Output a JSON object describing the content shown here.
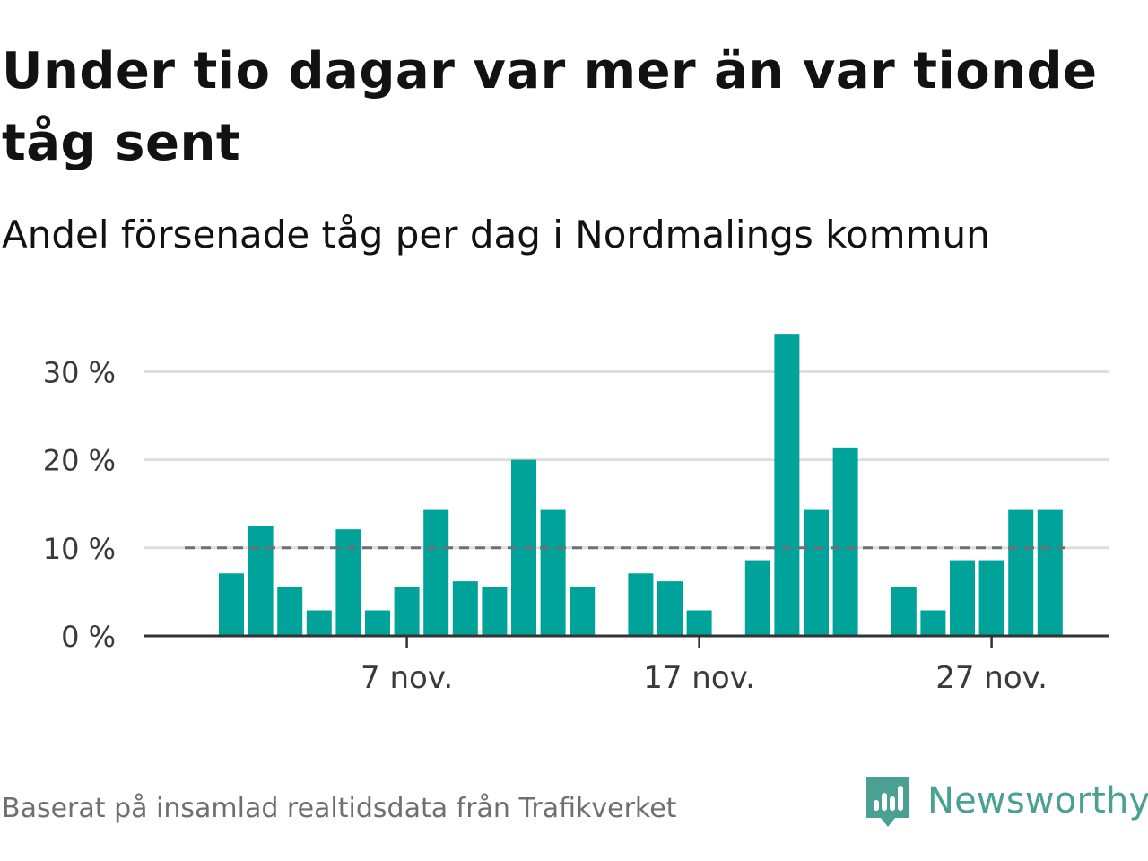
{
  "title": "Under tio dagar var mer än var tionde tåg sent",
  "subtitle": "Andel försenade tåg per dag i Nordmalings kommun",
  "footer": {
    "source": "Baserat på insamlad realtidsdata från Trafikverket",
    "brand": "Newsworthy"
  },
  "colors": {
    "bar": "#00a39a",
    "reference_line": "#6e6e76",
    "grid": "#dedede",
    "axis": "#333333",
    "brand": "#4aa093"
  },
  "chart_data": {
    "type": "bar",
    "x": [
      "2018-11-01",
      "2018-11-02",
      "2018-11-03",
      "2018-11-04",
      "2018-11-05",
      "2018-11-06",
      "2018-11-07",
      "2018-11-08",
      "2018-11-09",
      "2018-11-10",
      "2018-11-11",
      "2018-11-12",
      "2018-11-13",
      "2018-11-14",
      "2018-11-15",
      "2018-11-16",
      "2018-11-17",
      "2018-11-18",
      "2018-11-19",
      "2018-11-20",
      "2018-11-21",
      "2018-11-22",
      "2018-11-23",
      "2018-11-24",
      "2018-11-25",
      "2018-11-26",
      "2018-11-27",
      "2018-11-28",
      "2018-11-29",
      "2018-11-30"
    ],
    "values": [
      7.1,
      12.5,
      5.6,
      2.9,
      12.1,
      2.9,
      5.6,
      14.3,
      6.2,
      5.6,
      20.0,
      14.3,
      5.6,
      null,
      7.1,
      6.2,
      2.9,
      null,
      8.6,
      34.3,
      14.3,
      21.4,
      null,
      5.6,
      2.9,
      8.6,
      8.6,
      14.3,
      14.3,
      null
    ],
    "reference_line": 10,
    "ylim": [
      0,
      35
    ],
    "yticks": [
      0,
      10,
      20,
      30
    ],
    "ytick_labels": [
      "0 %",
      "10 %",
      "20 %",
      "30 %"
    ],
    "xticks": [
      "2018-11-07",
      "2018-11-17",
      "2018-11-27"
    ],
    "xtick_labels": [
      "7 nov.",
      "17 nov.",
      "27 nov."
    ],
    "xlabel": "",
    "ylabel": "",
    "grid": true,
    "legend": "none"
  }
}
